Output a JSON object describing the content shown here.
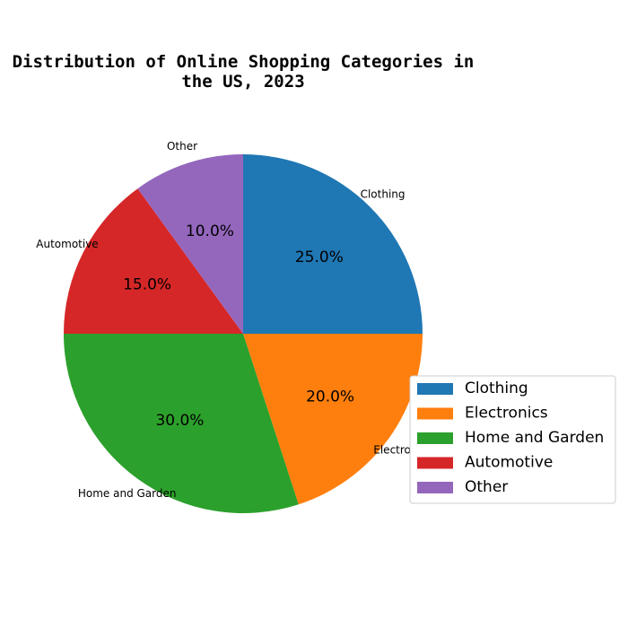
{
  "chart_data": {
    "type": "pie",
    "title": "Distribution of Online Shopping Categories in the US, 2023",
    "title_lines": [
      "Distribution of Online Shopping Categories in",
      "the US, 2023"
    ],
    "labels": [
      "Clothing",
      "Electronics",
      "Home and Garden",
      "Automotive",
      "Other"
    ],
    "values": [
      25,
      20,
      30,
      15,
      10
    ],
    "percent_labels": [
      "25.0%",
      "20.0%",
      "30.0%",
      "15.0%",
      "10.0%"
    ],
    "colors": [
      "#1f77b4",
      "#ff7f0e",
      "#2ca02c",
      "#d62728",
      "#9467bd"
    ],
    "start_angle_deg": 90,
    "direction": "clockwise",
    "legend": {
      "placement": "lower-right",
      "entries": [
        "Clothing",
        "Electronics",
        "Home and Garden",
        "Automotive",
        "Other"
      ]
    }
  }
}
